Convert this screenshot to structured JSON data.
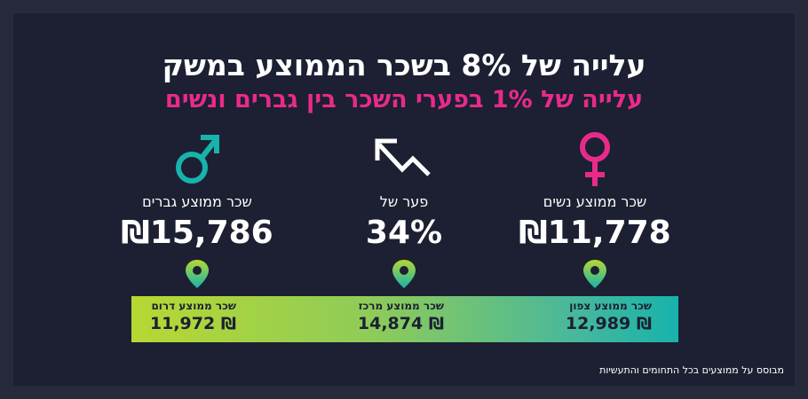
{
  "headline": "עלייה של 8% בשכר הממוצע במשק",
  "subheadline": "עלייה של 1% בפערי השכר בין גברים ונשים",
  "stats": {
    "women": {
      "label": "שכר ממוצע נשים",
      "value": "₪11,778",
      "icon": "female-symbol-icon"
    },
    "gap": {
      "label": "פער של",
      "value": "34%",
      "icon": "trend-arrow-icon"
    },
    "men": {
      "label": "שכר ממוצע גברים",
      "value": "₪15,786",
      "icon": "male-symbol-icon"
    }
  },
  "regions": {
    "north": {
      "label": "שכר ממוצע צפון",
      "value": "₪ 12,989"
    },
    "center": {
      "label": "שכר ממוצע מרכז",
      "value": "₪ 14,874"
    },
    "south": {
      "label": "שכר ממוצע דרום",
      "value": "₪ 11,972"
    }
  },
  "footnote": "מבוסס על ממוצעים בכל התחומים והתעשיות",
  "colors": {
    "background": "#1c2032",
    "accent_pink": "#ea2a8b",
    "accent_teal": "#17b3ac",
    "accent_lime": "#b7d832"
  }
}
